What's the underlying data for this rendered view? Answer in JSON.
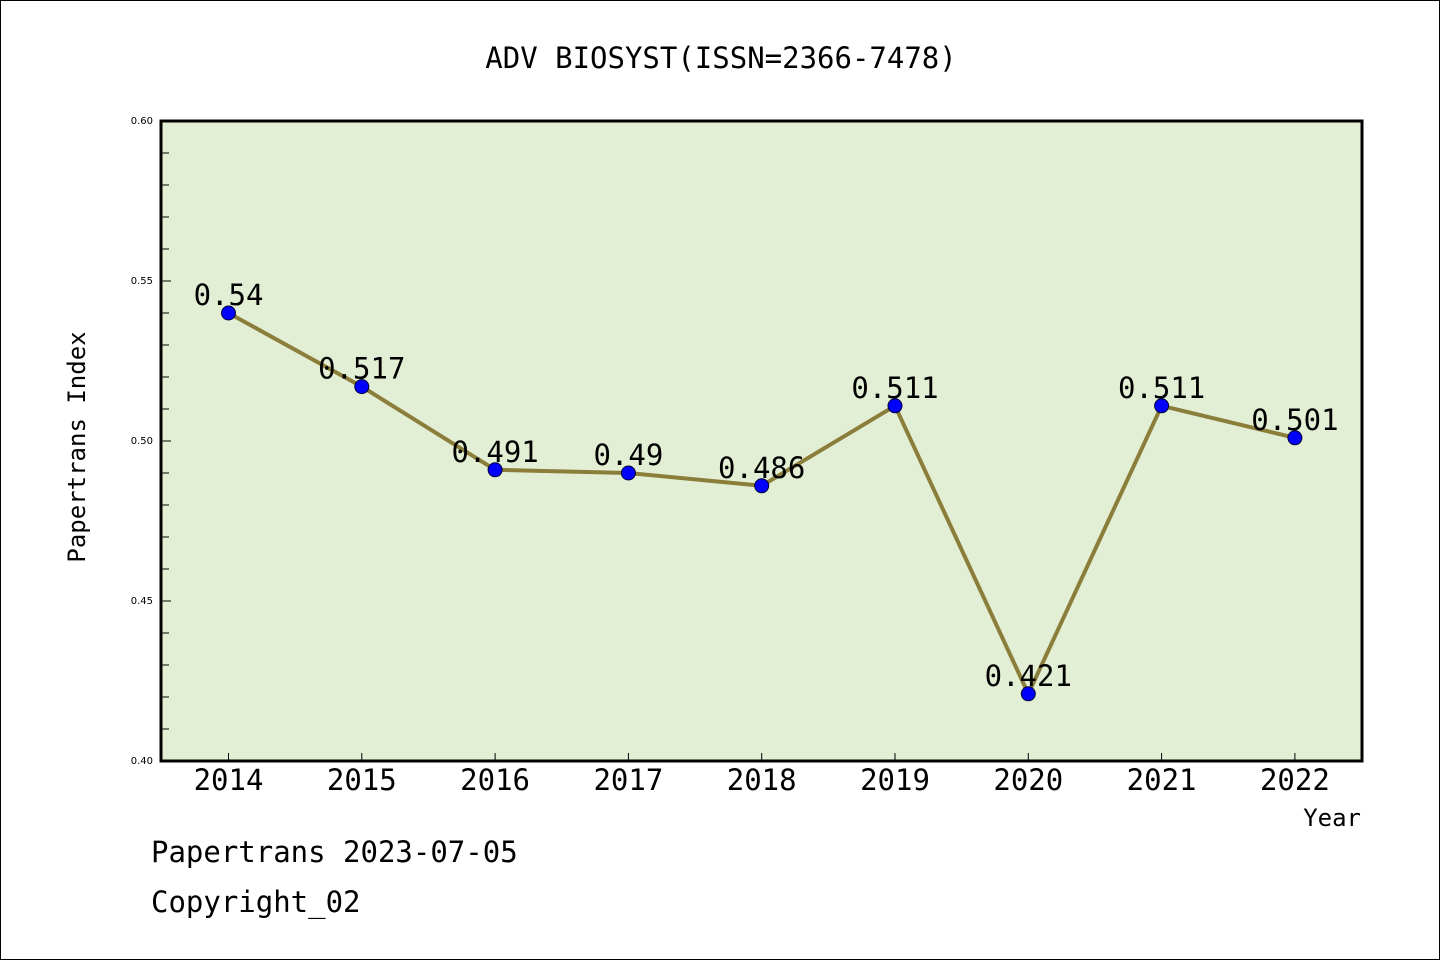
{
  "chart_data": {
    "type": "line",
    "title": "ADV BIOSYST(ISSN=2366-7478)",
    "xlabel": "Year",
    "ylabel": "Papertrans Index",
    "categories": [
      "2014",
      "2015",
      "2016",
      "2017",
      "2018",
      "2019",
      "2020",
      "2021",
      "2022"
    ],
    "series": [
      {
        "values": [
          0.54,
          0.517,
          0.491,
          0.49,
          0.486,
          0.511,
          0.421,
          0.511,
          0.501
        ]
      }
    ],
    "data_labels": [
      "0.54",
      "0.517",
      "0.491",
      "0.49",
      "0.486",
      "0.511",
      "0.421",
      "0.511",
      "0.501"
    ],
    "ylim": [
      0.4,
      0.6
    ],
    "yticks": [
      "0.40",
      "0.45",
      "0.50",
      "0.55",
      "0.60"
    ],
    "grid": false,
    "colors": {
      "plot_bg": "#e2efd5",
      "line": "#8b7d3a",
      "marker": "#0000ff"
    }
  },
  "footer": {
    "line1": "Papertrans 2023-07-05",
    "line2": "Copyright_02"
  }
}
